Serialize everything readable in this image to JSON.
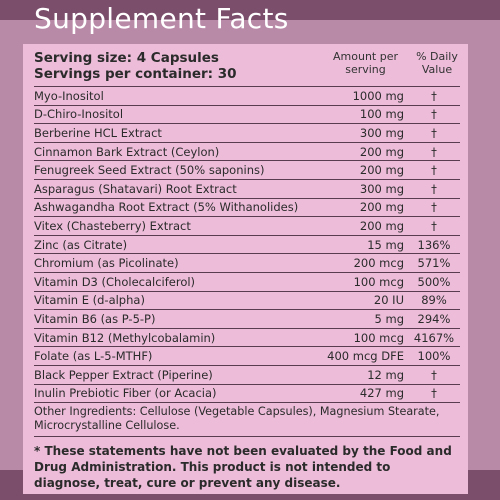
{
  "title": "Supplement Facts",
  "serving_size": "Serving size: 4 Capsules",
  "servings_per_container": "Servings per container: 30",
  "col_amount": "Amount per serving",
  "col_dv": "% Daily Value",
  "rows": [
    {
      "name": "Myo-Inositol",
      "amount": "1000 mg",
      "dv": "†"
    },
    {
      "name": "D-Chiro-Inositol",
      "amount": "100 mg",
      "dv": "†"
    },
    {
      "name": "Berberine HCL Extract",
      "amount": "300 mg",
      "dv": "†"
    },
    {
      "name": "Cinnamon Bark Extract (Ceylon)",
      "amount": "200 mg",
      "dv": "†"
    },
    {
      "name": "Fenugreek Seed Extract (50% saponins)",
      "amount": "200 mg",
      "dv": "†"
    },
    {
      "name": "Asparagus (Shatavari) Root Extract",
      "amount": "300 mg",
      "dv": "†"
    },
    {
      "name": "Ashwagandha Root Extract (5% Withanolides)",
      "amount": "200 mg",
      "dv": "†"
    },
    {
      "name": "Vitex (Chasteberry) Extract",
      "amount": "200 mg",
      "dv": "†"
    },
    {
      "name": "Zinc (as Citrate)",
      "amount": "15 mg",
      "dv": "136%"
    },
    {
      "name": "Chromium (as Picolinate)",
      "amount": "200 mcg",
      "dv": "571%"
    },
    {
      "name": "Vitamin D3 (Cholecalciferol)",
      "amount": "100 mcg",
      "dv": "500%"
    },
    {
      "name": "Vitamin E (d-alpha)",
      "amount": "20 IU",
      "dv": "89%"
    },
    {
      "name": "Vitamin B6 (as P-5-P)",
      "amount": "5 mg",
      "dv": "294%"
    },
    {
      "name": "Vitamin B12 (Methylcobalamin)",
      "amount": "100 mcg",
      "dv": "4167%"
    },
    {
      "name": "Folate (as L-5-MTHF)",
      "amount": "400 mcg DFE",
      "dv": "100%"
    },
    {
      "name": "Black Pepper Extract (Piperine)",
      "amount": "12 mg",
      "dv": "†"
    },
    {
      "name": "Inulin Prebiotic Fiber (or Acacia)",
      "amount": "427 mg",
      "dv": "†"
    }
  ],
  "other_ingredients": "Other Ingredients: Cellulose (Vegetable Capsules), Magnesium Stearate, Microcrystalline Cellulose.",
  "disclaimer": "* These statements have not been evaluated by the Food and Drug Administration. This product is not intended to diagnose, treat, cure or prevent any disease."
}
